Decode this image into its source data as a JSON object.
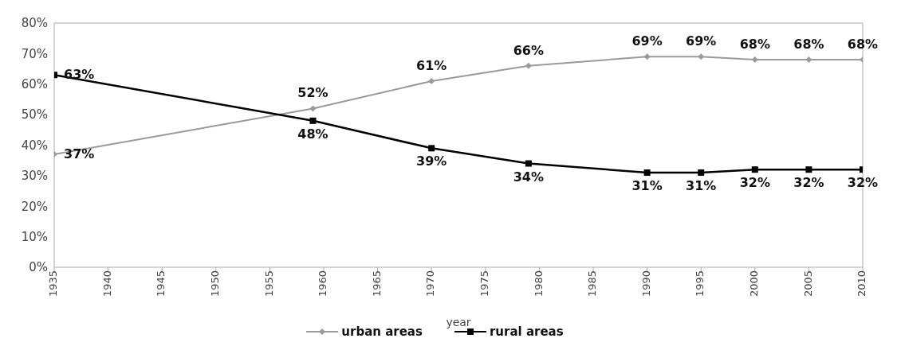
{
  "chart_data": {
    "type": "line",
    "xlabel": "year",
    "x": [
      1935,
      1959,
      1970,
      1979,
      1990,
      1995,
      2000,
      2005,
      2010
    ],
    "series": [
      {
        "name": "urban areas",
        "color": "#9a9a9a",
        "marker": "diamond",
        "values": [
          37,
          52,
          61,
          66,
          69,
          69,
          68,
          68,
          68
        ],
        "value_labels": [
          "37%",
          "52%",
          "61%",
          "66%",
          "69%",
          "69%",
          "68%",
          "68%",
          "68%"
        ]
      },
      {
        "name": "rural areas",
        "color": "#000000",
        "marker": "square",
        "values": [
          63,
          48,
          39,
          34,
          31,
          31,
          32,
          32,
          32
        ],
        "value_labels": [
          "63%",
          "48%",
          "39%",
          "34%",
          "31%",
          "31%",
          "32%",
          "32%",
          "32%"
        ]
      }
    ],
    "xlim": [
      1935,
      2010
    ],
    "xticks": [
      1935,
      1940,
      1945,
      1950,
      1955,
      1960,
      1965,
      1970,
      1975,
      1980,
      1985,
      1990,
      1995,
      2000,
      2005,
      2010
    ],
    "ylim": [
      0,
      80
    ],
    "yticks": [
      {
        "value": 0,
        "label": "0%"
      },
      {
        "value": 10,
        "label": "10%"
      },
      {
        "value": 20,
        "label": "20%"
      },
      {
        "value": 30,
        "label": "30%"
      },
      {
        "value": 40,
        "label": "40%"
      },
      {
        "value": 50,
        "label": "50%"
      },
      {
        "value": 60,
        "label": "60%"
      },
      {
        "value": 70,
        "label": "70%"
      },
      {
        "value": 80,
        "label": "80%"
      }
    ],
    "grid": false,
    "legend": "bottom"
  }
}
